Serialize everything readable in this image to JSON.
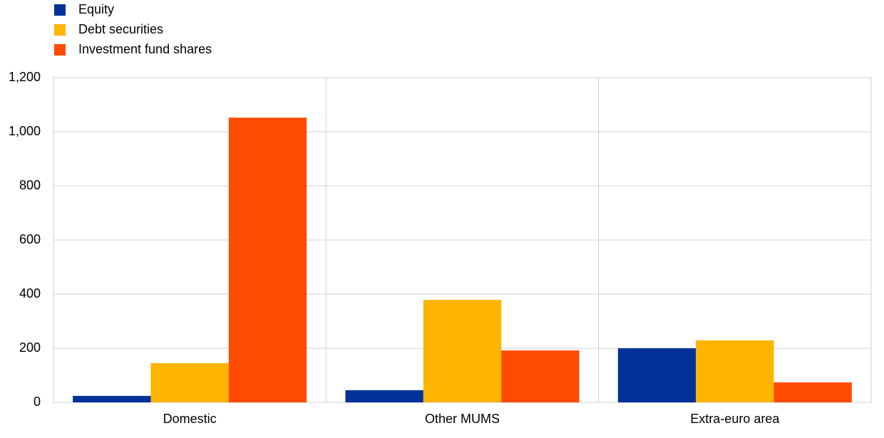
{
  "chart_data": {
    "type": "bar",
    "categories": [
      "Domestic",
      "Other MUMS",
      "Extra-euro area"
    ],
    "series": [
      {
        "name": "Equity",
        "color": "#003299",
        "values": [
          24,
          45,
          200
        ]
      },
      {
        "name": "Debt securities",
        "color": "#ffb400",
        "values": [
          145,
          379,
          229
        ]
      },
      {
        "name": "Investment fund shares",
        "color": "#ff4b00",
        "values": [
          1052,
          192,
          74
        ]
      }
    ],
    "ylim": [
      0,
      1200
    ],
    "yticks": [
      0,
      200,
      400,
      600,
      800,
      {
        "value": 1000,
        "label": "1,000"
      },
      {
        "value": 1200,
        "label": "1,200"
      }
    ],
    "grid": true,
    "legend": "top-left"
  }
}
